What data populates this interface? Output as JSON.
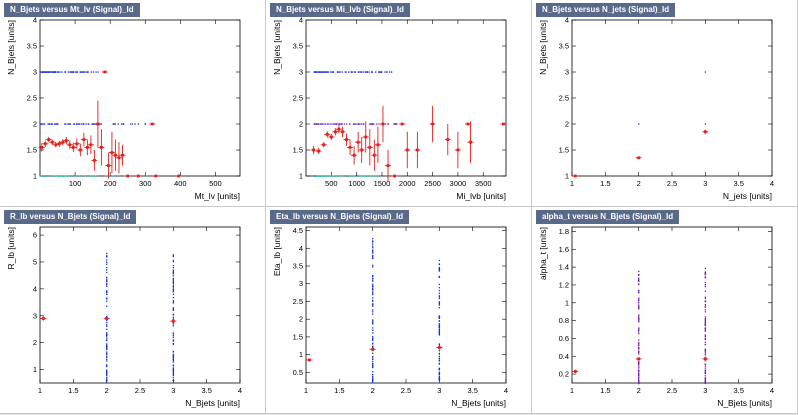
{
  "colors": {
    "markers": "#e0201b",
    "scatter": "#1a2fd6",
    "scatter_alt": "#7a1fb0",
    "scatter_low": "#1fb39c",
    "title_bg": "#58698a"
  },
  "chart_data": [
    {
      "type": "scatter",
      "title": "N_Bjets versus Mt_lv (Signal)_Id",
      "xlabel": "Mt_lv  [units]",
      "ylabel": "N_Bjets  [units]",
      "xlim": [
        0,
        570
      ],
      "ylim": [
        1,
        4
      ],
      "xticks": [
        100,
        200,
        300,
        400,
        500
      ],
      "yticks": [
        1,
        1.5,
        2,
        2.5,
        3,
        3.5,
        4
      ],
      "scatter_rows": [
        {
          "y": 3,
          "x": [
            0,
            165
          ],
          "color": "scatter"
        },
        {
          "y": 2,
          "x": [
            0,
            300
          ],
          "color": "scatter"
        },
        {
          "y": 1,
          "x": [
            0,
            340
          ],
          "color": "scatter_low"
        }
      ],
      "profile": [
        {
          "x": 5,
          "y": 1.55,
          "ey": 0.08
        },
        {
          "x": 15,
          "y": 1.62,
          "ey": 0.06
        },
        {
          "x": 25,
          "y": 1.7,
          "ey": 0.05
        },
        {
          "x": 35,
          "y": 1.65,
          "ey": 0.05
        },
        {
          "x": 45,
          "y": 1.6,
          "ey": 0.05
        },
        {
          "x": 55,
          "y": 1.62,
          "ey": 0.06
        },
        {
          "x": 65,
          "y": 1.65,
          "ey": 0.06
        },
        {
          "x": 75,
          "y": 1.68,
          "ey": 0.07
        },
        {
          "x": 85,
          "y": 1.6,
          "ey": 0.08
        },
        {
          "x": 95,
          "y": 1.55,
          "ey": 0.09
        },
        {
          "x": 105,
          "y": 1.62,
          "ey": 0.1
        },
        {
          "x": 115,
          "y": 1.5,
          "ey": 0.12
        },
        {
          "x": 125,
          "y": 1.7,
          "ey": 0.13
        },
        {
          "x": 135,
          "y": 1.55,
          "ey": 0.15
        },
        {
          "x": 145,
          "y": 1.6,
          "ey": 0.18
        },
        {
          "x": 155,
          "y": 1.3,
          "ey": 0.2
        },
        {
          "x": 165,
          "y": 2.0,
          "ey": 0.45
        },
        {
          "x": 175,
          "y": 1.55,
          "ey": 0.35
        },
        {
          "x": 185,
          "y": 3.0,
          "ey": 0
        },
        {
          "x": 195,
          "y": 1.2,
          "ey": 0.25
        },
        {
          "x": 205,
          "y": 1.45,
          "ey": 0.4
        },
        {
          "x": 215,
          "y": 1.4,
          "ey": 0.3
        },
        {
          "x": 225,
          "y": 1.35,
          "ey": 0.3
        },
        {
          "x": 235,
          "y": 1.4,
          "ey": 0.2
        },
        {
          "x": 250,
          "y": 1.0,
          "ey": 0
        },
        {
          "x": 280,
          "y": 1.0,
          "ey": 0
        },
        {
          "x": 320,
          "y": 2.0,
          "ey": 0
        },
        {
          "x": 330,
          "y": 1.0,
          "ey": 0
        },
        {
          "x": 395,
          "y": 1.0,
          "ey": 0
        }
      ]
    },
    {
      "type": "scatter",
      "title": "N_Bjets versus Mi_lvb (Signal)_Id",
      "xlabel": "Mi_lvb  [units]",
      "ylabel": "N_Bjets  [units]",
      "xlim": [
        0,
        3950
      ],
      "ylim": [
        1,
        4
      ],
      "xticks": [
        500,
        1000,
        1500,
        2000,
        2500,
        3000,
        3500
      ],
      "yticks": [
        1,
        1.5,
        2,
        2.5,
        3,
        3.5,
        4
      ],
      "scatter_rows": [
        {
          "y": 3,
          "x": [
            150,
            1700
          ],
          "color": "scatter"
        },
        {
          "y": 2,
          "x": [
            150,
            1800
          ],
          "color": "scatter_alt"
        },
        {
          "y": 1,
          "x": [
            150,
            1500
          ],
          "color": "scatter_low"
        }
      ],
      "profile": [
        {
          "x": 150,
          "y": 1.5,
          "ey": 0.08
        },
        {
          "x": 250,
          "y": 1.48,
          "ey": 0.06
        },
        {
          "x": 350,
          "y": 1.6,
          "ey": 0.05
        },
        {
          "x": 420,
          "y": 1.8,
          "ey": 0.06
        },
        {
          "x": 500,
          "y": 1.75,
          "ey": 0.06
        },
        {
          "x": 580,
          "y": 1.85,
          "ey": 0.07
        },
        {
          "x": 650,
          "y": 1.9,
          "ey": 0.08
        },
        {
          "x": 720,
          "y": 1.85,
          "ey": 0.1
        },
        {
          "x": 800,
          "y": 1.7,
          "ey": 0.12
        },
        {
          "x": 870,
          "y": 1.55,
          "ey": 0.15
        },
        {
          "x": 950,
          "y": 1.4,
          "ey": 0.18
        },
        {
          "x": 1030,
          "y": 1.65,
          "ey": 0.2
        },
        {
          "x": 1100,
          "y": 1.5,
          "ey": 0.25
        },
        {
          "x": 1180,
          "y": 1.75,
          "ey": 0.3
        },
        {
          "x": 1260,
          "y": 1.55,
          "ey": 0.35
        },
        {
          "x": 1350,
          "y": 1.4,
          "ey": 0.3
        },
        {
          "x": 1420,
          "y": 1.6,
          "ey": 0.35
        },
        {
          "x": 1520,
          "y": 2.0,
          "ey": 0.35
        },
        {
          "x": 1620,
          "y": 1.2,
          "ey": 0.3
        },
        {
          "x": 1750,
          "y": 1.0,
          "ey": 0
        },
        {
          "x": 1900,
          "y": 2.0,
          "ey": 0
        },
        {
          "x": 2000,
          "y": 1.5,
          "ey": 0.35
        },
        {
          "x": 2200,
          "y": 1.5,
          "ey": 0.35
        },
        {
          "x": 2500,
          "y": 2.0,
          "ey": 0.35
        },
        {
          "x": 2800,
          "y": 1.7,
          "ey": 0.3
        },
        {
          "x": 3000,
          "y": 1.5,
          "ey": 0.35
        },
        {
          "x": 3200,
          "y": 2.0,
          "ey": 0
        },
        {
          "x": 3250,
          "y": 1.65,
          "ey": 0.4
        },
        {
          "x": 3900,
          "y": 2.0,
          "ey": 0
        }
      ]
    },
    {
      "type": "scatter",
      "title": "N_Bjets versus N_jets (Signal)_Id",
      "xlabel": "N_jets  [units]",
      "ylabel": "N_Bjets  [units]",
      "xlim": [
        1,
        4
      ],
      "ylim": [
        1,
        4
      ],
      "xticks": [
        1,
        1.5,
        2,
        2.5,
        3,
        3.5,
        4
      ],
      "yticks": [
        1,
        1.5,
        2,
        2.5,
        3,
        3.5,
        4
      ],
      "scatter_points": [
        {
          "x": 2,
          "y": 2,
          "color": "scatter"
        },
        {
          "x": 3,
          "y": 2,
          "color": "scatter"
        },
        {
          "x": 3,
          "y": 3,
          "color": "scatter"
        }
      ],
      "profile": [
        {
          "x": 1.05,
          "y": 1.0,
          "ey": 0
        },
        {
          "x": 2.0,
          "y": 1.35,
          "ey": 0.02
        },
        {
          "x": 3.0,
          "y": 1.85,
          "ey": 0.04
        }
      ]
    },
    {
      "type": "scatter",
      "title": "R_lb versus N_Bjets (Signal)_Id",
      "xlabel": "N_Bjets  [units]",
      "ylabel": "R_lb  [units]",
      "xlim": [
        1,
        4
      ],
      "ylim": [
        0.5,
        6.3
      ],
      "xticks": [
        1,
        1.5,
        2,
        2.5,
        3,
        3.5,
        4
      ],
      "yticks": [
        1,
        2,
        3,
        4,
        5,
        6
      ],
      "scatter_columns": [
        {
          "x": 2,
          "y": [
            0.6,
            5.5
          ],
          "color": "scatter"
        },
        {
          "x": 3,
          "y": [
            0.6,
            5.3
          ],
          "color": "scatter"
        }
      ],
      "profile": [
        {
          "x": 1.05,
          "y": 2.9,
          "ey": 0.08
        },
        {
          "x": 2.0,
          "y": 2.9,
          "ey": 0.05
        },
        {
          "x": 3.0,
          "y": 2.8,
          "ey": 0.1
        }
      ]
    },
    {
      "type": "scatter",
      "title": "Eta_lb versus N_Bjets (Signal)_Id",
      "xlabel": "N_Bjets  [units]",
      "ylabel": "Eta_lb  [units]",
      "xlim": [
        1,
        4
      ],
      "ylim": [
        0.2,
        4.6
      ],
      "xticks": [
        1,
        1.5,
        2,
        2.5,
        3,
        3.5,
        4
      ],
      "yticks": [
        0.5,
        1,
        1.5,
        2,
        2.5,
        3,
        3.5,
        4,
        4.5
      ],
      "scatter_columns": [
        {
          "x": 2,
          "y": [
            0.2,
            4.4
          ],
          "color": "scatter"
        },
        {
          "x": 3,
          "y": [
            0.3,
            4.0
          ],
          "color": "scatter"
        }
      ],
      "profile": [
        {
          "x": 1.05,
          "y": 0.85,
          "ey": 0.04
        },
        {
          "x": 2.0,
          "y": 1.15,
          "ey": 0.05
        },
        {
          "x": 3.0,
          "y": 1.2,
          "ey": 0.06
        }
      ]
    },
    {
      "type": "scatter",
      "title": "alpha_t versus N_Bjets (Signal)_Id",
      "xlabel": "N_Bjets  [units]",
      "ylabel": "alpha_t  [units]",
      "xlim": [
        1,
        4
      ],
      "ylim": [
        0.1,
        1.85
      ],
      "xticks": [
        1,
        1.5,
        2,
        2.5,
        3,
        3.5,
        4
      ],
      "yticks": [
        0.2,
        0.4,
        0.6,
        0.8,
        1,
        1.2,
        1.4,
        1.6,
        1.8
      ],
      "scatter_columns": [
        {
          "x": 2,
          "y": [
            0.1,
            1.4
          ],
          "color": "scatter_alt"
        },
        {
          "x": 3,
          "y": [
            0.1,
            1.4
          ],
          "color": "scatter_alt"
        }
      ],
      "profile": [
        {
          "x": 1.05,
          "y": 0.23,
          "ey": 0.02
        },
        {
          "x": 2.0,
          "y": 0.37,
          "ey": 0.02
        },
        {
          "x": 3.0,
          "y": 0.37,
          "ey": 0.03
        }
      ]
    }
  ]
}
